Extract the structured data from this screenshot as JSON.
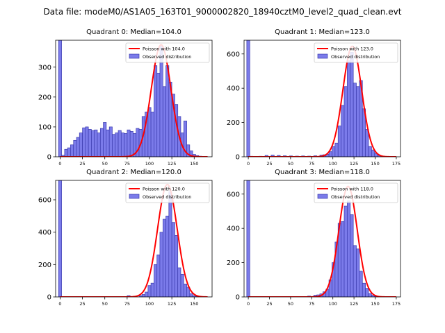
{
  "figure": {
    "title": "Data file: modeM0/AS1A05_163T01_9000002820_18940cztM0_level2_quad_clean.evt"
  },
  "colors": {
    "bar_fill": "#7b7bea",
    "bar_edge": "#3c3cae",
    "curve": "#ff0000",
    "axis": "#000000"
  },
  "chart_data": [
    {
      "type": "bar",
      "title": "Quadrant 0: Median=104.0",
      "legend": {
        "curve_label": "Poisson with 104.0",
        "bar_label": "Observed distribution",
        "position": "top-right"
      },
      "xlim": [
        -5,
        170
      ],
      "ylim": [
        0,
        390
      ],
      "xticks": [
        0,
        25,
        50,
        75,
        100,
        125,
        150
      ],
      "yticks": [
        0,
        100,
        200,
        300
      ],
      "bin_width": 3.333,
      "bins": [
        {
          "x": 0,
          "count": 390
        },
        {
          "x": 3.3,
          "count": 5
        },
        {
          "x": 6.7,
          "count": 25
        },
        {
          "x": 10,
          "count": 30
        },
        {
          "x": 13.3,
          "count": 40
        },
        {
          "x": 16.7,
          "count": 55
        },
        {
          "x": 20,
          "count": 65
        },
        {
          "x": 23.3,
          "count": 80
        },
        {
          "x": 26.7,
          "count": 97
        },
        {
          "x": 30,
          "count": 100
        },
        {
          "x": 33.3,
          "count": 92
        },
        {
          "x": 36.7,
          "count": 88
        },
        {
          "x": 40,
          "count": 90
        },
        {
          "x": 43.3,
          "count": 80
        },
        {
          "x": 46.7,
          "count": 95
        },
        {
          "x": 50,
          "count": 115
        },
        {
          "x": 53.3,
          "count": 90
        },
        {
          "x": 56.7,
          "count": 100
        },
        {
          "x": 60,
          "count": 75
        },
        {
          "x": 63.3,
          "count": 80
        },
        {
          "x": 66.7,
          "count": 88
        },
        {
          "x": 70,
          "count": 80
        },
        {
          "x": 73.3,
          "count": 78
        },
        {
          "x": 76.7,
          "count": 90
        },
        {
          "x": 80,
          "count": 85
        },
        {
          "x": 83.3,
          "count": 78
        },
        {
          "x": 86.7,
          "count": 95
        },
        {
          "x": 90,
          "count": 92
        },
        {
          "x": 93.3,
          "count": 135
        },
        {
          "x": 96.7,
          "count": 150
        },
        {
          "x": 100,
          "count": 165
        },
        {
          "x": 103.3,
          "count": 150
        },
        {
          "x": 106.7,
          "count": 305
        },
        {
          "x": 110,
          "count": 280
        },
        {
          "x": 113.3,
          "count": 370
        },
        {
          "x": 116.7,
          "count": 235
        },
        {
          "x": 120,
          "count": 305
        },
        {
          "x": 123.3,
          "count": 250
        },
        {
          "x": 126.7,
          "count": 210
        },
        {
          "x": 130,
          "count": 175
        },
        {
          "x": 133.3,
          "count": 135
        },
        {
          "x": 136.7,
          "count": 80
        },
        {
          "x": 140,
          "count": 120
        },
        {
          "x": 143.3,
          "count": 40
        },
        {
          "x": 146.7,
          "count": 20
        },
        {
          "x": 150,
          "count": 8
        },
        {
          "x": 153.3,
          "count": 4
        },
        {
          "x": 156.7,
          "count": 2
        }
      ],
      "poisson": {
        "mean": 104.0,
        "peak": 375,
        "shift": 9,
        "sigma": 11
      }
    },
    {
      "type": "bar",
      "title": "Quadrant 1: Median=123.0",
      "legend": {
        "curve_label": "Poisson with 123.0",
        "bar_label": "Observed distribution",
        "position": "top-right"
      },
      "xlim": [
        -5,
        180
      ],
      "ylim": [
        0,
        680
      ],
      "xticks": [
        0,
        25,
        50,
        75,
        100,
        125,
        150,
        175
      ],
      "yticks": [
        0,
        200,
        400,
        600
      ],
      "bin_width": 3.6,
      "bins": [
        {
          "x": 0,
          "count": 680
        },
        {
          "x": 3.6,
          "count": 3
        },
        {
          "x": 14.4,
          "count": 3
        },
        {
          "x": 21.6,
          "count": 8
        },
        {
          "x": 28.8,
          "count": 10
        },
        {
          "x": 36,
          "count": 8
        },
        {
          "x": 43.2,
          "count": 6
        },
        {
          "x": 50.4,
          "count": 5
        },
        {
          "x": 57.6,
          "count": 4
        },
        {
          "x": 64.8,
          "count": 5
        },
        {
          "x": 72,
          "count": 4
        },
        {
          "x": 79.2,
          "count": 6
        },
        {
          "x": 86.4,
          "count": 10
        },
        {
          "x": 90,
          "count": 12
        },
        {
          "x": 93.6,
          "count": 15
        },
        {
          "x": 97.2,
          "count": 30
        },
        {
          "x": 100.8,
          "count": 60
        },
        {
          "x": 104.4,
          "count": 80
        },
        {
          "x": 108,
          "count": 180
        },
        {
          "x": 111.6,
          "count": 300
        },
        {
          "x": 115.2,
          "count": 410
        },
        {
          "x": 118.8,
          "count": 560
        },
        {
          "x": 122.4,
          "count": 610
        },
        {
          "x": 126,
          "count": 430
        },
        {
          "x": 129.6,
          "count": 410
        },
        {
          "x": 133.2,
          "count": 445
        },
        {
          "x": 136.8,
          "count": 280
        },
        {
          "x": 140.4,
          "count": 160
        },
        {
          "x": 144,
          "count": 60
        },
        {
          "x": 147.6,
          "count": 40
        },
        {
          "x": 151.2,
          "count": 20
        },
        {
          "x": 154.8,
          "count": 8
        },
        {
          "x": 158.4,
          "count": 4
        }
      ],
      "poisson": {
        "mean": 123.0,
        "peak": 645,
        "shift": 0,
        "sigma": 11.09
      }
    },
    {
      "type": "bar",
      "title": "Quadrant 2: Median=120.0",
      "legend": {
        "curve_label": "Poisson with 120.0",
        "bar_label": "Observed distribution",
        "position": "top-right"
      },
      "xlim": [
        -5,
        170
      ],
      "ylim": [
        0,
        720
      ],
      "xticks": [
        0,
        25,
        50,
        75,
        100,
        125,
        150
      ],
      "yticks": [
        0,
        200,
        400,
        600
      ],
      "bin_width": 3.333,
      "bins": [
        {
          "x": 0,
          "count": 720
        },
        {
          "x": 76.7,
          "count": 8
        },
        {
          "x": 83.3,
          "count": 4
        },
        {
          "x": 90,
          "count": 8
        },
        {
          "x": 93.3,
          "count": 15
        },
        {
          "x": 96.7,
          "count": 30
        },
        {
          "x": 100,
          "count": 70
        },
        {
          "x": 103.3,
          "count": 85
        },
        {
          "x": 106.7,
          "count": 200
        },
        {
          "x": 110,
          "count": 260
        },
        {
          "x": 113.3,
          "count": 400
        },
        {
          "x": 116.7,
          "count": 480
        },
        {
          "x": 120,
          "count": 500
        },
        {
          "x": 123.3,
          "count": 650
        },
        {
          "x": 126.7,
          "count": 460
        },
        {
          "x": 130,
          "count": 380
        },
        {
          "x": 133.3,
          "count": 180
        },
        {
          "x": 136.7,
          "count": 140
        },
        {
          "x": 140,
          "count": 80
        },
        {
          "x": 143.3,
          "count": 60
        },
        {
          "x": 146.7,
          "count": 20
        },
        {
          "x": 150,
          "count": 8
        },
        {
          "x": 153.3,
          "count": 4
        }
      ],
      "poisson": {
        "mean": 120.0,
        "peak": 695,
        "shift": 0,
        "sigma": 10.95
      }
    },
    {
      "type": "bar",
      "title": "Quadrant 3: Median=118.0",
      "legend": {
        "curve_label": "Poisson with 118.0",
        "bar_label": "Observed distribution",
        "position": "top-right"
      },
      "xlim": [
        -5,
        180
      ],
      "ylim": [
        0,
        680
      ],
      "xticks": [
        0,
        25,
        50,
        75,
        100,
        125,
        150,
        175
      ],
      "yticks": [
        0,
        200,
        400,
        600
      ],
      "bin_width": 3.6,
      "bins": [
        {
          "x": 0,
          "count": 680
        },
        {
          "x": 72,
          "count": 5
        },
        {
          "x": 79.2,
          "count": 10
        },
        {
          "x": 82.8,
          "count": 12
        },
        {
          "x": 86.4,
          "count": 18
        },
        {
          "x": 90,
          "count": 30
        },
        {
          "x": 93.6,
          "count": 45
        },
        {
          "x": 97.2,
          "count": 100
        },
        {
          "x": 100.8,
          "count": 200
        },
        {
          "x": 104.4,
          "count": 320
        },
        {
          "x": 108,
          "count": 430
        },
        {
          "x": 111.6,
          "count": 440
        },
        {
          "x": 115.2,
          "count": 530
        },
        {
          "x": 118.8,
          "count": 560
        },
        {
          "x": 122.4,
          "count": 480
        },
        {
          "x": 126,
          "count": 300
        },
        {
          "x": 129.6,
          "count": 280
        },
        {
          "x": 133.2,
          "count": 150
        },
        {
          "x": 136.8,
          "count": 80
        },
        {
          "x": 140.4,
          "count": 50
        },
        {
          "x": 144,
          "count": 20
        },
        {
          "x": 147.6,
          "count": 10
        },
        {
          "x": 151.2,
          "count": 4
        }
      ],
      "poisson": {
        "mean": 118.0,
        "peak": 645,
        "shift": 0,
        "sigma": 10.86
      }
    }
  ]
}
